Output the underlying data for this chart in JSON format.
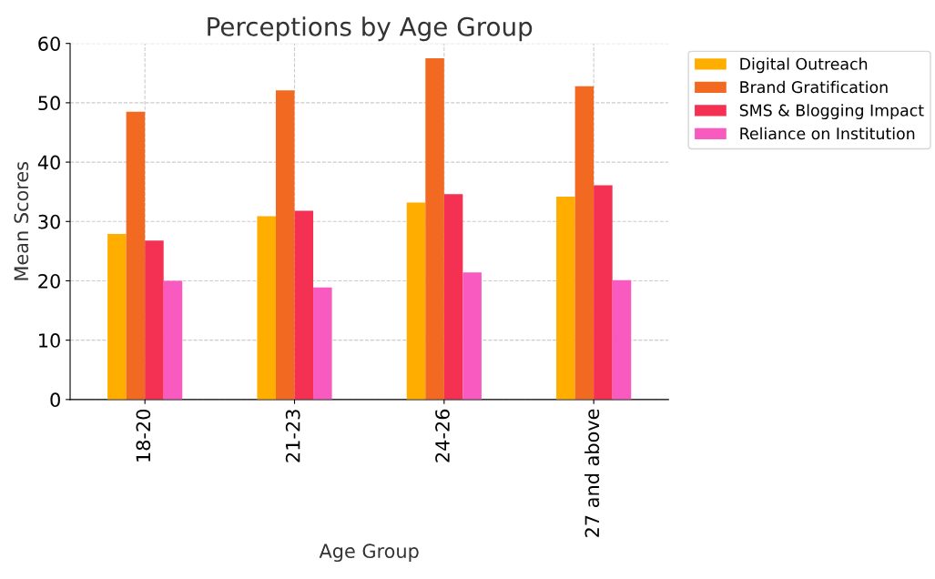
{
  "chart_data": {
    "type": "bar",
    "title": "Perceptions by Age Group",
    "xlabel": "Age Group",
    "ylabel": "Mean Scores",
    "categories": [
      "18-20",
      "21-23",
      "24-26",
      "27 and above"
    ],
    "series": [
      {
        "name": "Digital Outreach",
        "color": "#ffae00",
        "values": [
          27.9,
          30.9,
          33.2,
          34.2
        ]
      },
      {
        "name": "Brand Gratification",
        "color": "#f26a22",
        "values": [
          48.5,
          52.1,
          57.5,
          52.8
        ]
      },
      {
        "name": "SMS & Blogging Impact",
        "color": "#f43153",
        "values": [
          26.8,
          31.8,
          34.6,
          36.1
        ]
      },
      {
        "name": "Reliance on Institution",
        "color": "#f85abf",
        "values": [
          20,
          18.9,
          21.4,
          20.1
        ]
      }
    ],
    "ylim": [
      0,
      60
    ],
    "yticks": [
      0,
      10,
      20,
      30,
      40,
      50,
      60
    ],
    "grid": true,
    "legend": "right"
  }
}
